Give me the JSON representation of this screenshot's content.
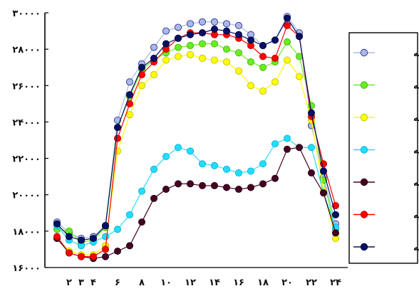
{
  "chart_data": {
    "type": "line",
    "x": [
      1,
      2,
      3,
      4,
      5,
      6,
      7,
      8,
      9,
      10,
      11,
      12,
      13,
      14,
      15,
      16,
      17,
      18,
      19,
      20,
      21,
      22,
      23,
      24
    ],
    "y_ticks": [
      "۱۶۰۰۰",
      "۱۸۰۰۰",
      "۲۰۰۰۰",
      "۲۲۰۰۰",
      "۲۴۰۰۰",
      "۲۶۰۰۰",
      "۲۸۰۰۰",
      "۳۰۰۰۰"
    ],
    "y_tick_values": [
      16000,
      18000,
      20000,
      22000,
      24000,
      26000,
      28000,
      30000
    ],
    "x_ticks": [
      "۲",
      "۳",
      "۴",
      "۶",
      "۸",
      "۱۰",
      "۱۲",
      "۱۴",
      "۱۶",
      "۱۸",
      "۲۰",
      "۲۲",
      "۲۴"
    ],
    "x_tick_values": [
      2,
      3,
      4,
      6,
      8,
      10,
      12,
      14,
      16,
      18,
      20,
      22,
      24
    ],
    "ylim": [
      16000,
      30000
    ],
    "xlim": [
      0,
      25
    ],
    "grid": false,
    "legend_position": "right",
    "series": [
      {
        "name": "جمعه",
        "color": "#aab8e8",
        "edge": "#1a237e",
        "values": [
          18500,
          17900,
          17600,
          17700,
          18300,
          24100,
          26200,
          27200,
          28100,
          29000,
          29200,
          29400,
          29500,
          29500,
          29400,
          29300,
          28800,
          28200,
          28500,
          29800,
          28900,
          23800,
          21000,
          18400
        ]
      },
      {
        "name": "دوشنبه",
        "color": "#66ee22",
        "edge": "#44aa00",
        "values": [
          18100,
          18000,
          17400,
          17500,
          18200,
          23700,
          25400,
          26900,
          27400,
          27800,
          28100,
          28200,
          28300,
          28300,
          28000,
          27800,
          27300,
          27000,
          27300,
          28400,
          27600,
          24900,
          20800,
          18100
        ]
      },
      {
        "name": "پنج شنبه",
        "color": "#ffff00",
        "edge": "#b8b800",
        "values": [
          17600,
          16900,
          16700,
          16700,
          17200,
          22400,
          24400,
          26000,
          26600,
          27400,
          27600,
          27700,
          27500,
          27400,
          27300,
          26800,
          26000,
          25700,
          26200,
          27400,
          26500,
          24100,
          20200,
          17600
        ]
      },
      {
        "name": "شنبه",
        "color": "#22ddff",
        "edge": "#00aacc",
        "values": [
          18300,
          17500,
          17200,
          17400,
          17700,
          18100,
          18900,
          20200,
          21400,
          22100,
          22600,
          22400,
          21700,
          21600,
          21400,
          21200,
          21300,
          21700,
          22800,
          23100,
          22600,
          22600,
          20100,
          18200
        ]
      },
      {
        "name": "یکشنبه",
        "color": "#440022",
        "edge": "#220011",
        "values": [
          17600,
          16800,
          16600,
          16500,
          16600,
          16900,
          17200,
          18500,
          19800,
          20300,
          20600,
          20600,
          20500,
          20500,
          20400,
          20300,
          20400,
          20600,
          20900,
          22500,
          22600,
          21200,
          20100,
          17900
        ]
      },
      {
        "name": "چهارشنبه",
        "color": "#ff0000",
        "edge": "#aa0000",
        "values": [
          17700,
          16800,
          16600,
          16600,
          17000,
          23100,
          25000,
          26600,
          27300,
          28000,
          28600,
          28900,
          28900,
          28800,
          28800,
          28600,
          28200,
          27600,
          27500,
          29300,
          28700,
          24300,
          21700,
          19400
        ]
      },
      {
        "name": "سه شنبه",
        "color": "#001166",
        "edge": "#000033",
        "values": [
          18400,
          17700,
          17500,
          17600,
          18300,
          23700,
          25500,
          27000,
          27500,
          28300,
          28600,
          28800,
          28900,
          29100,
          29000,
          28800,
          28500,
          28200,
          28500,
          29700,
          28700,
          24500,
          21300,
          18900
        ]
      }
    ]
  }
}
